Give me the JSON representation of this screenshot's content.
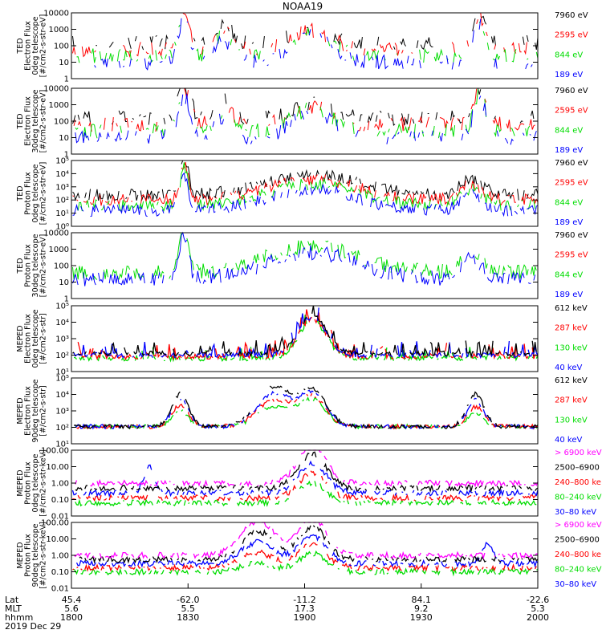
{
  "title": "NOAA19",
  "colors": {
    "black": "#000000",
    "red": "#ff0000",
    "green": "#00dd00",
    "blue": "#0000ff",
    "magenta": "#ff00ff"
  },
  "panels": [
    {
      "id": "ted-e-0",
      "ylabel": [
        "TED",
        "Electron Flux",
        "0deg telescope",
        "[#/cm2-s-str-eV]"
      ],
      "scale": "log",
      "ylim": [
        1,
        10000
      ],
      "ticks": [
        "1",
        "10",
        "100",
        "1000",
        "10000"
      ],
      "legend": [
        {
          "text": "7960 eV",
          "color": "black"
        },
        {
          "text": "2595 eV",
          "color": "red"
        },
        {
          "text": "844 eV",
          "color": "green"
        },
        {
          "text": "189 eV",
          "color": "blue"
        }
      ],
      "series": [
        "black",
        "red",
        "green",
        "blue"
      ],
      "style": "electron",
      "level": 20,
      "spikes": "tall"
    },
    {
      "id": "ted-e-30",
      "ylabel": [
        "TED",
        "Electron Flux",
        "30deg telescope",
        "[#/cm2-s-str-eV]"
      ],
      "scale": "log",
      "ylim": [
        1,
        10000
      ],
      "ticks": [
        "1",
        "10",
        "100",
        "1000",
        "10000"
      ],
      "legend": [
        {
          "text": "7960 eV",
          "color": "black"
        },
        {
          "text": "2595 eV",
          "color": "red"
        },
        {
          "text": "844 eV",
          "color": "green"
        },
        {
          "text": "189 eV",
          "color": "blue"
        }
      ],
      "series": [
        "black",
        "red",
        "green",
        "blue"
      ],
      "style": "electron",
      "level": 30,
      "spikes": "tall"
    },
    {
      "id": "ted-p-0",
      "ylabel": [
        "TED",
        "Proton Flux",
        "0deg telescope",
        "[#/cm2-s-str-eV]"
      ],
      "scale": "log",
      "ylim": [
        1,
        100000
      ],
      "ticks": [
        "10⁰",
        "10¹",
        "10²",
        "10³",
        "10⁴",
        "10⁵"
      ],
      "legend": [
        {
          "text": "7960 eV",
          "color": "black"
        },
        {
          "text": "2595 eV",
          "color": "red"
        },
        {
          "text": "844 eV",
          "color": "green"
        },
        {
          "text": "189 eV",
          "color": "blue"
        }
      ],
      "series": [
        "black",
        "red",
        "green",
        "blue"
      ],
      "style": "proton",
      "level": 100,
      "spikes": "none"
    },
    {
      "id": "ted-p-30",
      "ylabel": [
        "TED",
        "Proton Flux",
        "30deg telescope",
        "[#/cm2-s-str-eV]"
      ],
      "scale": "log",
      "ylim": [
        1,
        10000
      ],
      "ticks": [
        "1",
        "10",
        "100",
        "1000",
        "10000"
      ],
      "legend": [
        {
          "text": "7960 eV",
          "color": "black"
        },
        {
          "text": "2595 eV",
          "color": "red"
        },
        {
          "text": "844 eV",
          "color": "green"
        },
        {
          "text": "189 eV",
          "color": "blue"
        }
      ],
      "series": [
        "green",
        "blue"
      ],
      "style": "proton",
      "level": 100,
      "spikes": "none"
    },
    {
      "id": "meped-e-0",
      "ylabel": [
        "MEPED",
        "Electron Flux",
        "0deg telescope",
        "[#/cm2-s-str]"
      ],
      "scale": "log",
      "ylim": [
        10,
        100000
      ],
      "ticks": [
        "10¹",
        "10²",
        "10³",
        "10⁴",
        "10⁵"
      ],
      "legend": [
        {
          "text": "612 keV",
          "color": "black"
        },
        {
          "text": "287 keV",
          "color": "red"
        },
        {
          "text": "130 keV",
          "color": "green"
        },
        {
          "text": "40 keV",
          "color": "blue"
        }
      ],
      "series": [
        "green",
        "red",
        "blue",
        "black"
      ],
      "style": "meped0",
      "level": 150,
      "spikes": "none"
    },
    {
      "id": "meped-e-90",
      "ylabel": [
        "MEPED",
        "Electron Flux",
        "90deg telescope",
        "[#/cm2-s-str]"
      ],
      "scale": "log",
      "ylim": [
        10,
        100000
      ],
      "ticks": [
        "10¹",
        "10²",
        "10³",
        "10⁴",
        "10⁵"
      ],
      "legend": [
        {
          "text": "612 keV",
          "color": "black"
        },
        {
          "text": "287 keV",
          "color": "red"
        },
        {
          "text": "130 keV",
          "color": "green"
        },
        {
          "text": "40 keV",
          "color": "blue"
        }
      ],
      "series": [
        "green",
        "red",
        "blue",
        "black"
      ],
      "style": "meped90",
      "level": 150,
      "spikes": "none"
    },
    {
      "id": "meped-p-0",
      "ylabel": [
        "MEPED",
        "Proton Flux",
        "0deg telescope",
        "[#/cm2-s-str-keV]"
      ],
      "scale": "log",
      "ylim": [
        0.01,
        100
      ],
      "ticks": [
        "0.01",
        "0.10",
        "1.00",
        "10.00",
        "100.00"
      ],
      "legend": [
        {
          "text": "> 6900 keV",
          "color": "magenta"
        },
        {
          "text": "2500–6900",
          "color": "black"
        },
        {
          "text": "240–800 ke",
          "color": "red"
        },
        {
          "text": "80–240 keV",
          "color": "green"
        },
        {
          "text": "30–80 keV",
          "color": "blue"
        }
      ],
      "series": [
        "green",
        "red",
        "blue",
        "black",
        "magenta"
      ],
      "style": "mepedp0",
      "level": 1,
      "spikes": "none"
    },
    {
      "id": "meped-p-90",
      "ylabel": [
        "MEPED",
        "Proton Flux",
        "90deg telescope",
        "[#/cm2-s-str-keV]"
      ],
      "scale": "log",
      "ylim": [
        0.01,
        100
      ],
      "ticks": [
        "0.01",
        "0.10",
        "1.00",
        "10.00",
        "100.00"
      ],
      "legend": [
        {
          "text": "> 6900 keV",
          "color": "magenta"
        },
        {
          "text": "2500–6900",
          "color": "black"
        },
        {
          "text": "240–800 ke",
          "color": "red"
        },
        {
          "text": "80–240 keV",
          "color": "green"
        },
        {
          "text": "30–80 keV",
          "color": "blue"
        }
      ],
      "series": [
        "green",
        "red",
        "blue",
        "black",
        "magenta"
      ],
      "style": "mepedp90",
      "level": 1,
      "spikes": "none"
    }
  ],
  "xaxis": {
    "row_labels": [
      "Lat",
      "MLT",
      "hhmm"
    ],
    "ticks": [
      {
        "lat": "45.4",
        "mlt": "5.6",
        "hhmm": "1800"
      },
      {
        "lat": "-62.0",
        "mlt": "5.5",
        "hhmm": "1830"
      },
      {
        "lat": "-11.2",
        "mlt": "17.3",
        "hhmm": "1900"
      },
      {
        "lat": "84.1",
        "mlt": "9.2",
        "hhmm": "1930"
      },
      {
        "lat": "-22.6",
        "mlt": "5.3",
        "hhmm": "2000"
      }
    ],
    "date": "2019 Dec 29"
  },
  "chart_data": {
    "type": "line",
    "title": "NOAA19",
    "x_range": [
      "1800",
      "2000"
    ],
    "xticks": [
      "1800",
      "1830",
      "1900",
      "1930",
      "2000"
    ],
    "panels": [
      {
        "ylabel": "TED Electron Flux 0deg telescope [#/cm2-s-str-eV]",
        "ylim": [
          1,
          10000
        ],
        "series": [
          "7960 eV",
          "2595 eV",
          "844 eV",
          "189 eV"
        ],
        "peaks": [
          {
            "time": "1829",
            "value": 3000
          },
          {
            "time": "1903",
            "value": 500
          },
          {
            "time": "1945",
            "value": 3000
          }
        ]
      },
      {
        "ylabel": "TED Electron Flux 30deg telescope [#/cm2-s-str-eV]",
        "ylim": [
          1,
          10000
        ],
        "series": [
          "7960 eV",
          "2595 eV",
          "844 eV",
          "189 eV"
        ],
        "peaks": [
          {
            "time": "1829",
            "value": 2000
          },
          {
            "time": "1903",
            "value": 300
          },
          {
            "time": "1945",
            "value": 1500
          }
        ]
      },
      {
        "ylabel": "TED Proton Flux 0deg telescope [#/cm2-s-str-eV]",
        "ylim": [
          1,
          100000
        ],
        "series": [
          "7960 eV",
          "2595 eV",
          "844 eV",
          "189 eV"
        ],
        "peaks": [
          {
            "time": "1829",
            "value": 20000
          },
          {
            "time": "1903",
            "value": 1500
          }
        ]
      },
      {
        "ylabel": "TED Proton Flux 30deg telescope [#/cm2-s-str-eV]",
        "ylim": [
          1,
          10000
        ],
        "series": [
          "7960 eV",
          "2595 eV",
          "844 eV",
          "189 eV"
        ],
        "peaks": [
          {
            "time": "1829",
            "value": 3000
          },
          {
            "time": "1904",
            "value": 2000
          }
        ]
      },
      {
        "ylabel": "MEPED Electron Flux 0deg telescope [#/cm2-s-str]",
        "ylim": [
          10,
          100000
        ],
        "series": [
          "612 keV",
          "287 keV",
          "130 keV",
          "40 keV"
        ],
        "peaks": [
          {
            "time": "1903",
            "value": 20000
          }
        ]
      },
      {
        "ylabel": "MEPED Electron Flux 90deg telescope [#/cm2-s-str]",
        "ylim": [
          10,
          100000
        ],
        "series": [
          "612 keV",
          "287 keV",
          "130 keV",
          "40 keV"
        ],
        "peaks": [
          {
            "time": "1826",
            "value": 20000
          },
          {
            "time": "1852",
            "value": 80000
          },
          {
            "time": "1903",
            "value": 20000
          },
          {
            "time": "1943",
            "value": 20000
          }
        ]
      },
      {
        "ylabel": "MEPED Proton Flux 0deg telescope [#/cm2-s-str-keV]",
        "ylim": [
          0.01,
          100
        ],
        "series": [
          "> 6900 keV",
          "2500–6900",
          "240–800 ke",
          "80–240 keV",
          "30–80 keV"
        ],
        "peaks": [
          {
            "time": "1902",
            "value": 40
          }
        ]
      },
      {
        "ylabel": "MEPED Proton Flux 90deg telescope [#/cm2-s-str-keV]",
        "ylim": [
          0.01,
          100
        ],
        "series": [
          "> 6900 keV",
          "2500–6900",
          "240–800 ke",
          "80–240 keV",
          "30–80 keV"
        ],
        "peaks": [
          {
            "time": "1848",
            "value": 30
          },
          {
            "time": "1903",
            "value": 40
          }
        ]
      }
    ]
  }
}
